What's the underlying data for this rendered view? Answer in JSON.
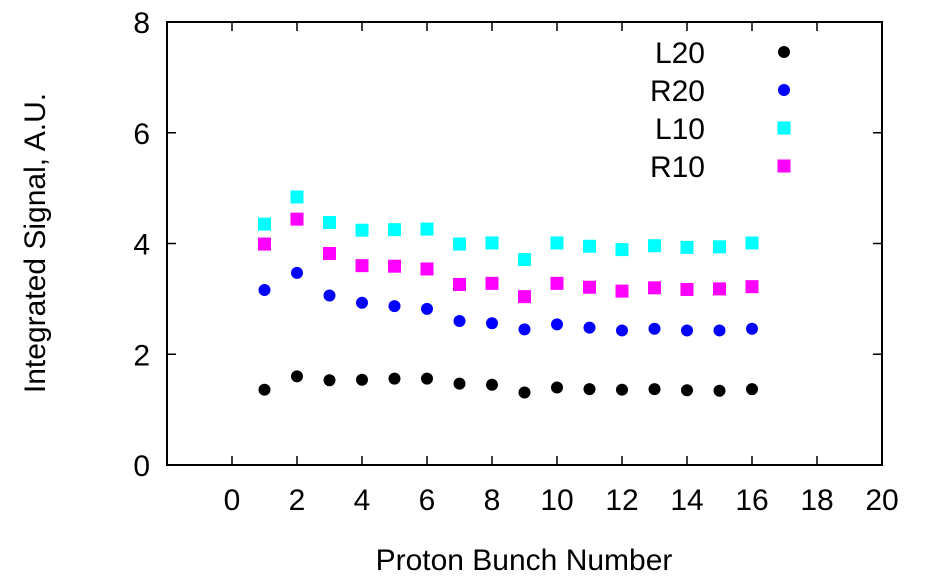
{
  "chart_data": {
    "type": "scatter",
    "xlabel": "Proton Bunch Number",
    "ylabel": "Integrated Signal, A.U.",
    "xlim": [
      -2,
      20
    ],
    "ylim": [
      0,
      8
    ],
    "xticks": [
      0,
      2,
      4,
      6,
      8,
      10,
      12,
      14,
      16,
      18,
      20
    ],
    "yticks": [
      0,
      2,
      4,
      6,
      8
    ],
    "grid": false,
    "legend_position": "top-right",
    "x": [
      1,
      2,
      3,
      4,
      5,
      6,
      7,
      8,
      9,
      10,
      11,
      12,
      13,
      14,
      15,
      16
    ],
    "series": [
      {
        "name": "L20",
        "marker": "circle",
        "color": "#000000",
        "values": [
          1.36,
          1.6,
          1.53,
          1.54,
          1.56,
          1.56,
          1.47,
          1.45,
          1.31,
          1.4,
          1.37,
          1.36,
          1.37,
          1.35,
          1.34,
          1.37
        ]
      },
      {
        "name": "R20",
        "marker": "circle",
        "color": "#0000ff",
        "values": [
          3.16,
          3.47,
          3.06,
          2.93,
          2.87,
          2.82,
          2.6,
          2.56,
          2.45,
          2.54,
          2.48,
          2.43,
          2.46,
          2.43,
          2.43,
          2.46
        ]
      },
      {
        "name": "L10",
        "marker": "square",
        "color": "#00ffff",
        "values": [
          4.35,
          4.84,
          4.38,
          4.24,
          4.25,
          4.26,
          3.99,
          4.01,
          3.71,
          4.01,
          3.95,
          3.89,
          3.96,
          3.93,
          3.94,
          4.01
        ]
      },
      {
        "name": "R10",
        "marker": "square",
        "color": "#ff00ff",
        "values": [
          3.99,
          4.44,
          3.82,
          3.6,
          3.59,
          3.54,
          3.26,
          3.28,
          3.04,
          3.28,
          3.21,
          3.14,
          3.2,
          3.17,
          3.18,
          3.22
        ]
      }
    ]
  }
}
